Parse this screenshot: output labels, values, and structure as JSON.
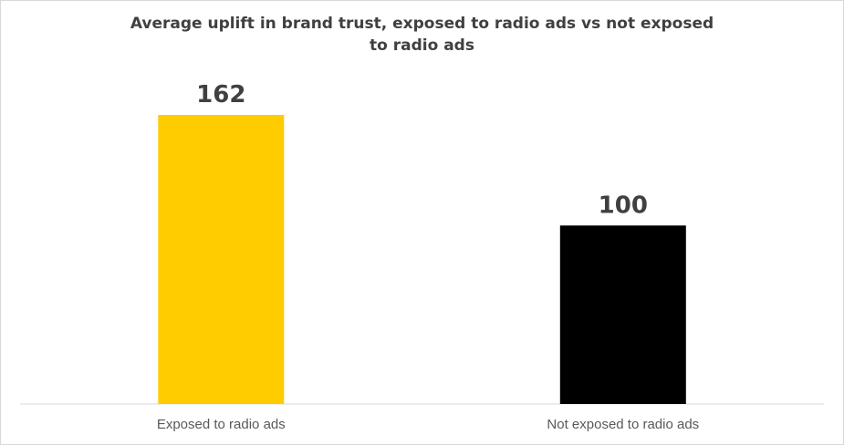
{
  "chart_data": {
    "type": "bar",
    "title": "Average uplift in brand trust, exposed to radio ads vs not exposed to radio ads",
    "categories": [
      "Exposed to radio ads",
      "Not exposed to radio ads"
    ],
    "values": [
      162,
      100
    ],
    "data_labels": [
      "162",
      "100"
    ],
    "colors": [
      "#FFCC00",
      "#000000"
    ],
    "xlabel": "",
    "ylabel": "",
    "ylim": [
      0,
      162
    ],
    "grid": false,
    "legend": "none"
  }
}
